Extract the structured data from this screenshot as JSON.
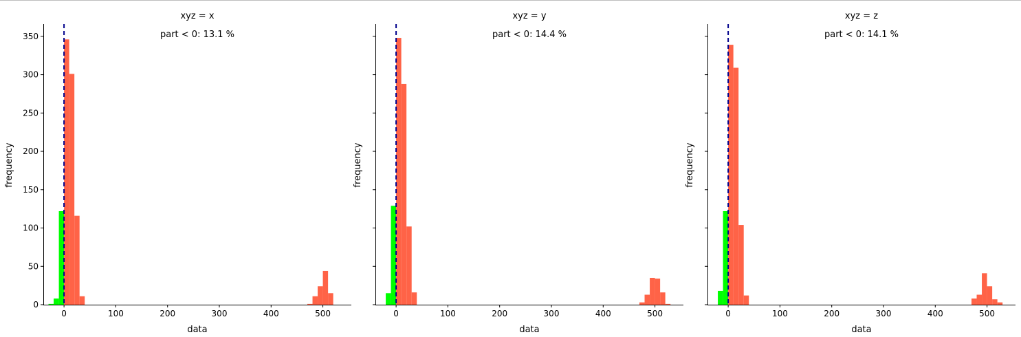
{
  "figure": {
    "colors": {
      "negative": "#00ff00",
      "positive": "#ff6347",
      "zero_line": "#00008b",
      "axis": "#000000"
    }
  },
  "chart_data": [
    {
      "type": "bar",
      "title": "xyz = x",
      "annotation": "part < 0: 13.1 %",
      "xlabel": "data",
      "ylabel": "frequency",
      "xlim": [
        -40,
        555
      ],
      "ylim": [
        0,
        366
      ],
      "xticks": [
        0,
        100,
        200,
        300,
        400,
        500
      ],
      "yticks": [
        0,
        50,
        100,
        150,
        200,
        250,
        300,
        350
      ],
      "bin_width": 10,
      "zero_line": 0,
      "series": [
        {
          "values": [
            [
              -30,
              1
            ],
            [
              -20,
              8
            ],
            [
              -10,
              122
            ]
          ]
        },
        {
          "values": [
            [
              0,
              346
            ],
            [
              10,
              301
            ],
            [
              20,
              116
            ],
            [
              30,
              11
            ],
            [
              470,
              1
            ],
            [
              480,
              11
            ],
            [
              490,
              24
            ],
            [
              500,
              44
            ],
            [
              510,
              15
            ]
          ]
        }
      ]
    },
    {
      "type": "bar",
      "title": "xyz = y",
      "annotation": "part < 0: 14.4 %",
      "xlabel": "data",
      "ylabel": "frequency",
      "xlim": [
        -40,
        555
      ],
      "ylim": [
        0,
        366
      ],
      "xticks": [
        0,
        100,
        200,
        300,
        400,
        500
      ],
      "yticks": [
        0,
        50,
        100,
        150,
        200,
        250,
        300,
        350
      ],
      "bin_width": 10,
      "zero_line": 0,
      "series": [
        {
          "values": [
            [
              -20,
              15
            ],
            [
              -10,
              129
            ]
          ]
        },
        {
          "values": [
            [
              0,
              348
            ],
            [
              10,
              288
            ],
            [
              20,
              102
            ],
            [
              30,
              16
            ],
            [
              470,
              3
            ],
            [
              480,
              13
            ],
            [
              490,
              35
            ],
            [
              500,
              34
            ],
            [
              510,
              16
            ],
            [
              520,
              1
            ]
          ]
        }
      ]
    },
    {
      "type": "bar",
      "title": "xyz = z",
      "annotation": "part < 0: 14.1 %",
      "xlabel": "data",
      "ylabel": "frequency",
      "xlim": [
        -40,
        555
      ],
      "ylim": [
        0,
        366
      ],
      "xticks": [
        0,
        100,
        200,
        300,
        400,
        500
      ],
      "yticks": [
        0,
        50,
        100,
        150,
        200,
        250,
        300,
        350
      ],
      "bin_width": 10,
      "zero_line": 0,
      "series": [
        {
          "values": [
            [
              -20,
              18
            ],
            [
              -10,
              122
            ]
          ]
        },
        {
          "values": [
            [
              0,
              339
            ],
            [
              10,
              309
            ],
            [
              20,
              104
            ],
            [
              30,
              12
            ],
            [
              470,
              8
            ],
            [
              480,
              13
            ],
            [
              490,
              41
            ],
            [
              500,
              24
            ],
            [
              510,
              7
            ],
            [
              520,
              3
            ]
          ]
        }
      ]
    }
  ]
}
